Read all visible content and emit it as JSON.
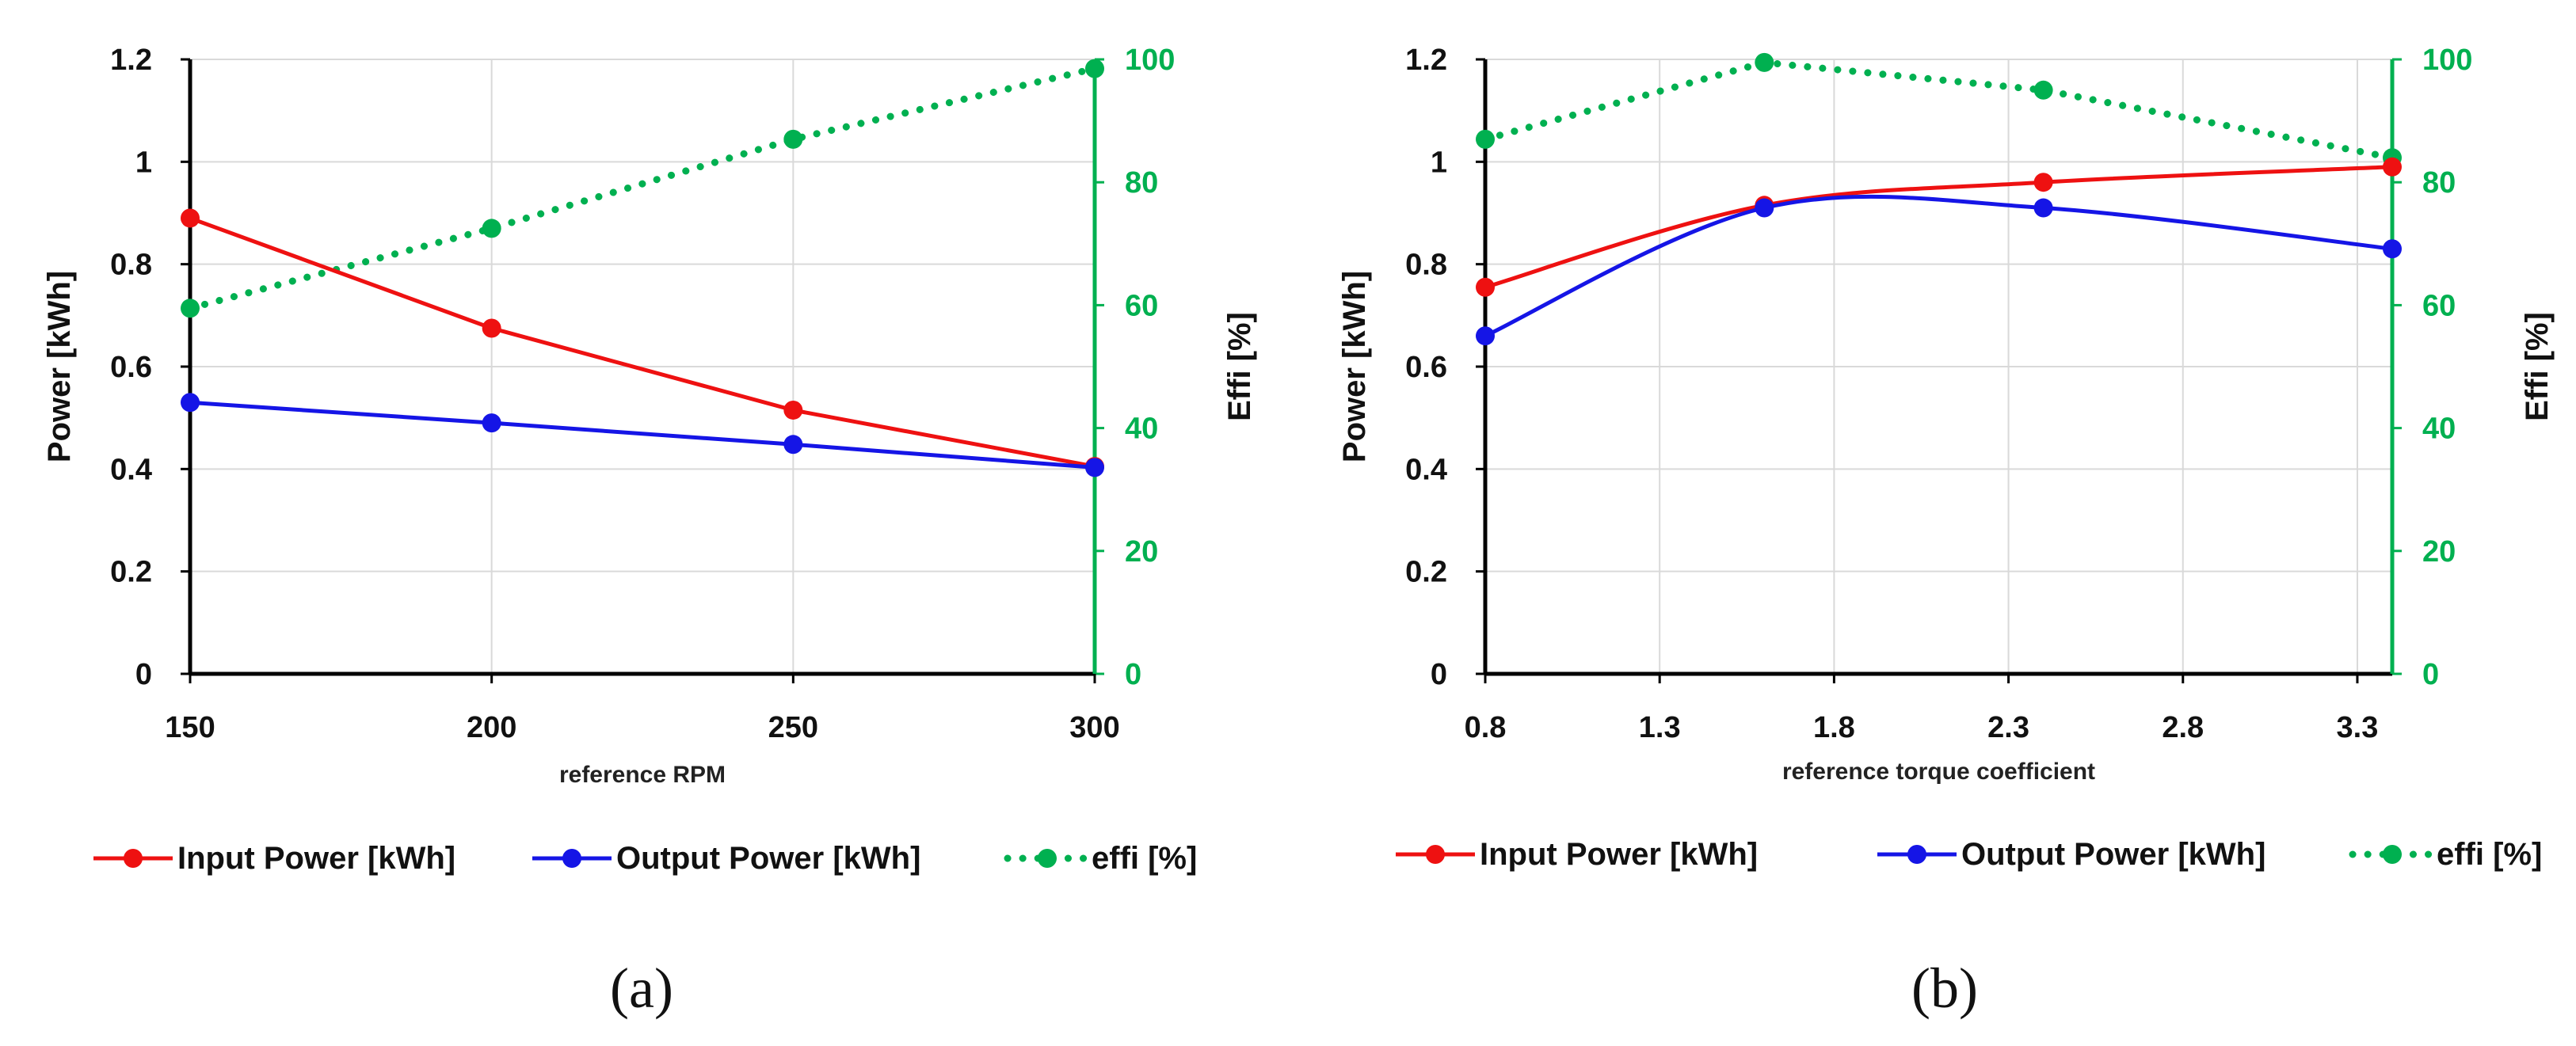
{
  "chart_data": [
    {
      "type": "line",
      "panel_label": "(a)",
      "title": "",
      "xlabel": "reference RPM",
      "ylabel": "Power [kWh]",
      "ylabel_right": "Effi [%]",
      "x": [
        150,
        200,
        250,
        300
      ],
      "xlim": [
        150,
        300
      ],
      "xticks": [
        "150",
        "200",
        "250",
        "300"
      ],
      "ylim": [
        0,
        1.2
      ],
      "yticks": [
        "0",
        "0.2",
        "0.4",
        "0.6",
        "0.8",
        "1",
        "1.2"
      ],
      "ylim_right": [
        0,
        100
      ],
      "yticks_right": [
        "0",
        "20",
        "40",
        "60",
        "80",
        "100"
      ],
      "grid": true,
      "legend_position": "bottom",
      "series": [
        {
          "name": "Input Power [kWh]",
          "axis": "left",
          "values": [
            0.89,
            0.675,
            0.515,
            0.405
          ],
          "color": "#ee1111",
          "style": "solid"
        },
        {
          "name": "Output Power [kWh]",
          "axis": "left",
          "values": [
            0.53,
            0.49,
            0.448,
            0.403
          ],
          "color": "#1515e6",
          "style": "solid"
        },
        {
          "name": "effi [%]",
          "axis": "right",
          "values": [
            59.5,
            72.5,
            87,
            98.5
          ],
          "color": "#00b050",
          "style": "dotted"
        }
      ]
    },
    {
      "type": "line",
      "panel_label": "(b)",
      "title": "",
      "xlabel": "reference torque coefficient",
      "ylabel": "Power [kWh]",
      "ylabel_right": "Effi [%]",
      "x": [
        0.8,
        1.6,
        2.4,
        3.4
      ],
      "xlim": [
        0.8,
        3.4
      ],
      "xticks": [
        "0.8",
        "1.3",
        "1.8",
        "2.3",
        "2.8",
        "3.3"
      ],
      "ylim": [
        0,
        1.2
      ],
      "yticks": [
        "0",
        "0.2",
        "0.4",
        "0.6",
        "0.8",
        "1",
        "1.2"
      ],
      "ylim_right": [
        0,
        100
      ],
      "yticks_right": [
        "0",
        "20",
        "40",
        "60",
        "80",
        "100"
      ],
      "grid": true,
      "legend_position": "bottom",
      "series": [
        {
          "name": "Input Power [kWh]",
          "axis": "left",
          "values": [
            0.755,
            0.915,
            0.96,
            0.99
          ],
          "color": "#ee1111",
          "style": "solid"
        },
        {
          "name": "Output Power [kWh]",
          "axis": "left",
          "values": [
            0.66,
            0.91,
            0.91,
            0.83
          ],
          "color": "#1515e6",
          "style": "solid"
        },
        {
          "name": "effi [%]",
          "axis": "right",
          "values": [
            87,
            99.5,
            95,
            84
          ],
          "color": "#00b050",
          "style": "dotted"
        }
      ]
    }
  ]
}
